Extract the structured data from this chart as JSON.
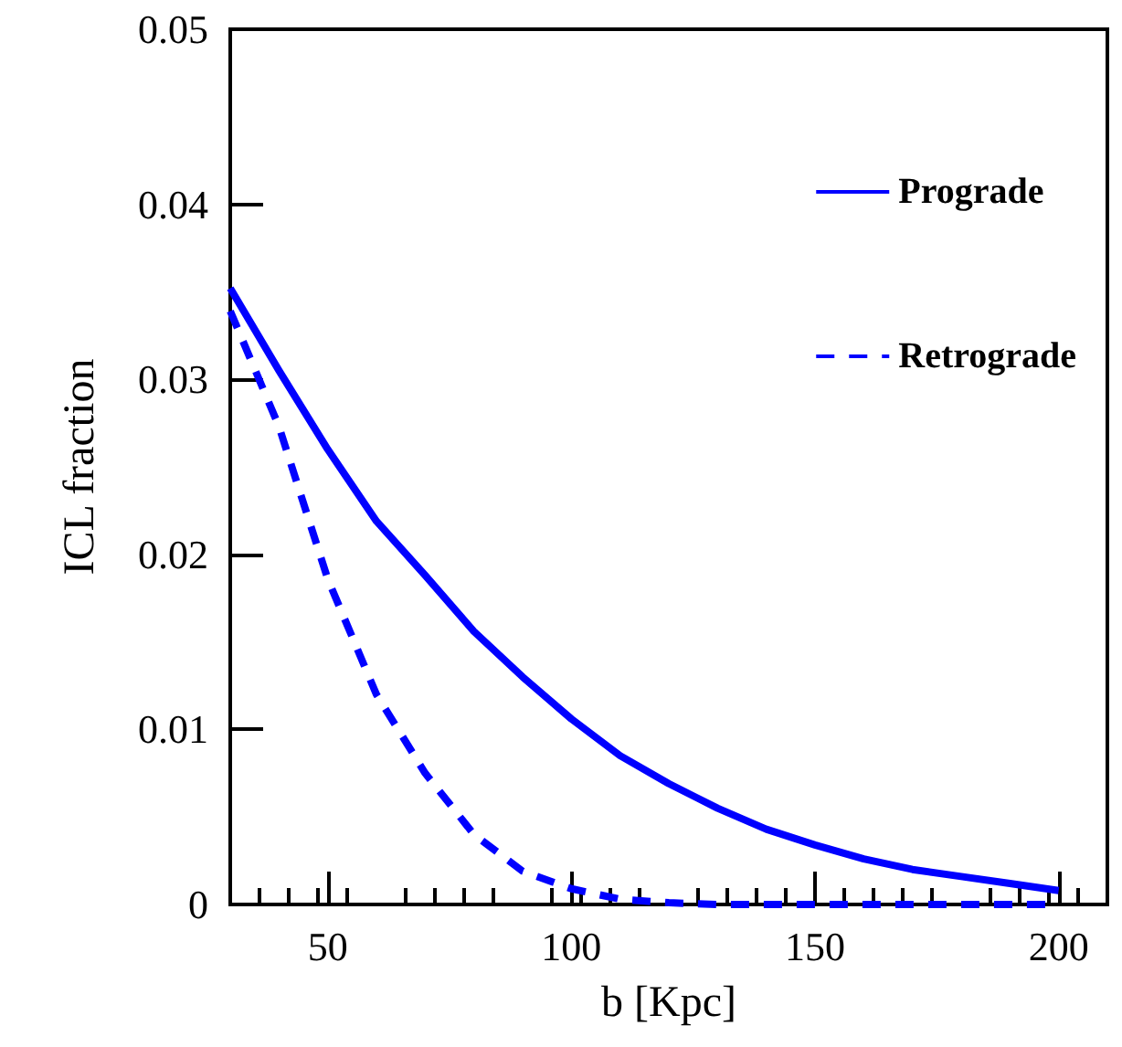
{
  "chart_data": {
    "type": "line",
    "xlabel": "b [Kpc]",
    "ylabel": "ICL fraction",
    "x": [
      30,
      40,
      50,
      60,
      70,
      80,
      90,
      100,
      110,
      120,
      130,
      140,
      150,
      160,
      170,
      180,
      190,
      200
    ],
    "series": [
      {
        "name": "Prograde",
        "color": "#0000ff",
        "line_style": "solid",
        "values": [
          0.0352,
          0.0305,
          0.026,
          0.0219,
          0.0188,
          0.0156,
          0.013,
          0.0106,
          0.0085,
          0.0069,
          0.0055,
          0.0043,
          0.0034,
          0.0026,
          0.002,
          0.0016,
          0.0012,
          0.0008
        ]
      },
      {
        "name": "Retrograde",
        "color": "#0000ff",
        "line_style": "dashed",
        "values": [
          0.0339,
          0.0273,
          0.0186,
          0.012,
          0.0075,
          0.004,
          0.0019,
          0.0009,
          0.0003,
          0.0001,
          0,
          0,
          0,
          0,
          0,
          0,
          0,
          0
        ]
      }
    ],
    "xlim": [
      30,
      210
    ],
    "xticks": [
      50,
      100,
      150,
      200
    ],
    "ylim": [
      0,
      0.05
    ],
    "yticks": [
      0,
      0.01,
      0.02,
      0.03,
      0.04,
      0.05
    ],
    "legend": "top right",
    "grid": false,
    "marker": "none"
  }
}
